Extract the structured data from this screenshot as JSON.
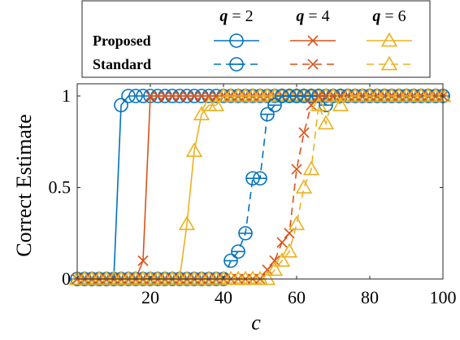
{
  "chart_data": {
    "type": "line",
    "title": "",
    "xlabel": "c",
    "ylabel": "Correct Estimate",
    "xlim": [
      0,
      100
    ],
    "ylim": [
      0,
      1
    ],
    "xticks": [
      20,
      40,
      60,
      80,
      100
    ],
    "xtick_labels": [
      "20",
      "40",
      "60",
      "80",
      "100"
    ],
    "yticks": [
      0,
      0.5,
      1
    ],
    "ytick_labels": [
      "0",
      "0.5",
      "1"
    ],
    "grid": false,
    "legend": {
      "placement": "top",
      "columns": [
        "q = 2",
        "q = 4",
        "q = 6"
      ],
      "column_parts": [
        {
          "var": "q",
          "eq": " = 2"
        },
        {
          "var": "q",
          "eq": " = 4"
        },
        {
          "var": "q",
          "eq": " = 6"
        }
      ],
      "rows": [
        "Proposed",
        "Standard"
      ]
    },
    "x": [
      0,
      2,
      4,
      6,
      8,
      10,
      12,
      14,
      16,
      18,
      20,
      22,
      24,
      26,
      28,
      30,
      32,
      34,
      36,
      38,
      40,
      42,
      44,
      46,
      48,
      50,
      52,
      54,
      56,
      58,
      60,
      62,
      64,
      66,
      68,
      70,
      72,
      74,
      76,
      78,
      80,
      82,
      84,
      86,
      88,
      90,
      92,
      94,
      96,
      98,
      100
    ],
    "series": [
      {
        "name": "Proposed",
        "q": "q = 2",
        "style": "solid",
        "marker": "circle",
        "color": "#0072BD",
        "values": [
          0,
          0,
          0,
          0,
          0,
          0,
          0.95,
          1,
          1,
          1,
          1,
          1,
          1,
          1,
          1,
          1,
          1,
          1,
          1,
          1,
          1,
          1,
          1,
          1,
          1,
          1,
          1,
          1,
          1,
          1,
          1,
          1,
          1,
          1,
          1,
          1,
          1,
          1,
          1,
          1,
          1,
          1,
          1,
          1,
          1,
          1,
          1,
          1,
          1,
          1,
          1
        ]
      },
      {
        "name": "Proposed",
        "q": "q = 4",
        "style": "solid",
        "marker": "x",
        "color": "#D95319",
        "values": [
          0,
          0,
          0,
          0,
          0,
          0,
          0,
          0,
          0,
          0.1,
          1,
          1,
          1,
          1,
          1,
          1,
          1,
          1,
          1,
          1,
          1,
          1,
          1,
          1,
          1,
          1,
          1,
          1,
          1,
          1,
          1,
          1,
          1,
          1,
          1,
          1,
          1,
          1,
          1,
          1,
          1,
          1,
          1,
          1,
          1,
          1,
          1,
          1,
          1,
          1,
          1
        ]
      },
      {
        "name": "Proposed",
        "q": "q = 6",
        "style": "solid",
        "marker": "triangle",
        "color": "#EDB120",
        "values": [
          0,
          0,
          0,
          0,
          0,
          0,
          0,
          0,
          0,
          0,
          0,
          0,
          0,
          0,
          0,
          0.3,
          0.7,
          0.9,
          0.95,
          0.95,
          1,
          1,
          1,
          1,
          1,
          1,
          1,
          1,
          1,
          1,
          1,
          1,
          1,
          1,
          1,
          1,
          1,
          1,
          1,
          1,
          1,
          1,
          1,
          1,
          1,
          1,
          1,
          1,
          1,
          1,
          1
        ]
      },
      {
        "name": "Standard",
        "q": "q = 2",
        "style": "dashed",
        "marker": "circle-bar",
        "color": "#0072BD",
        "values": [
          0,
          0,
          0,
          0,
          0,
          0,
          0,
          0,
          0,
          0,
          0,
          0,
          0,
          0,
          0,
          0,
          0,
          0,
          0,
          0,
          0,
          0.1,
          0.15,
          0.25,
          0.55,
          0.55,
          0.9,
          0.95,
          1,
          1,
          1,
          1,
          1,
          1,
          0.95,
          1,
          1,
          1,
          1,
          1,
          1,
          1,
          1,
          1,
          1,
          1,
          1,
          1,
          1,
          1,
          1
        ]
      },
      {
        "name": "Standard",
        "q": "q = 4",
        "style": "dashed",
        "marker": "x",
        "color": "#D95319",
        "values": [
          0,
          0,
          0,
          0,
          0,
          0,
          0,
          0,
          0,
          0,
          0,
          0,
          0,
          0,
          0,
          0,
          0,
          0,
          0,
          0,
          0,
          0,
          0,
          0,
          0,
          0,
          0.05,
          0.1,
          0.2,
          0.25,
          0.6,
          0.8,
          0.95,
          1,
          1,
          1,
          1,
          1,
          1,
          1,
          1,
          1,
          1,
          1,
          1,
          1,
          1,
          1,
          1,
          1,
          1
        ]
      },
      {
        "name": "Standard",
        "q": "q = 6",
        "style": "dashed",
        "marker": "triangle",
        "color": "#EDB120",
        "values": [
          0,
          0,
          0,
          0,
          0,
          0,
          0,
          0,
          0,
          0,
          0,
          0,
          0,
          0,
          0,
          0,
          0,
          0,
          0,
          0,
          0,
          0,
          0,
          0,
          0,
          0,
          0,
          0.05,
          0.1,
          0.15,
          0.3,
          0.5,
          0.6,
          0.95,
          0.85,
          1,
          0.95,
          1,
          1,
          1,
          1,
          1,
          1,
          1,
          1,
          1,
          1,
          1,
          1,
          1,
          1
        ]
      }
    ]
  }
}
